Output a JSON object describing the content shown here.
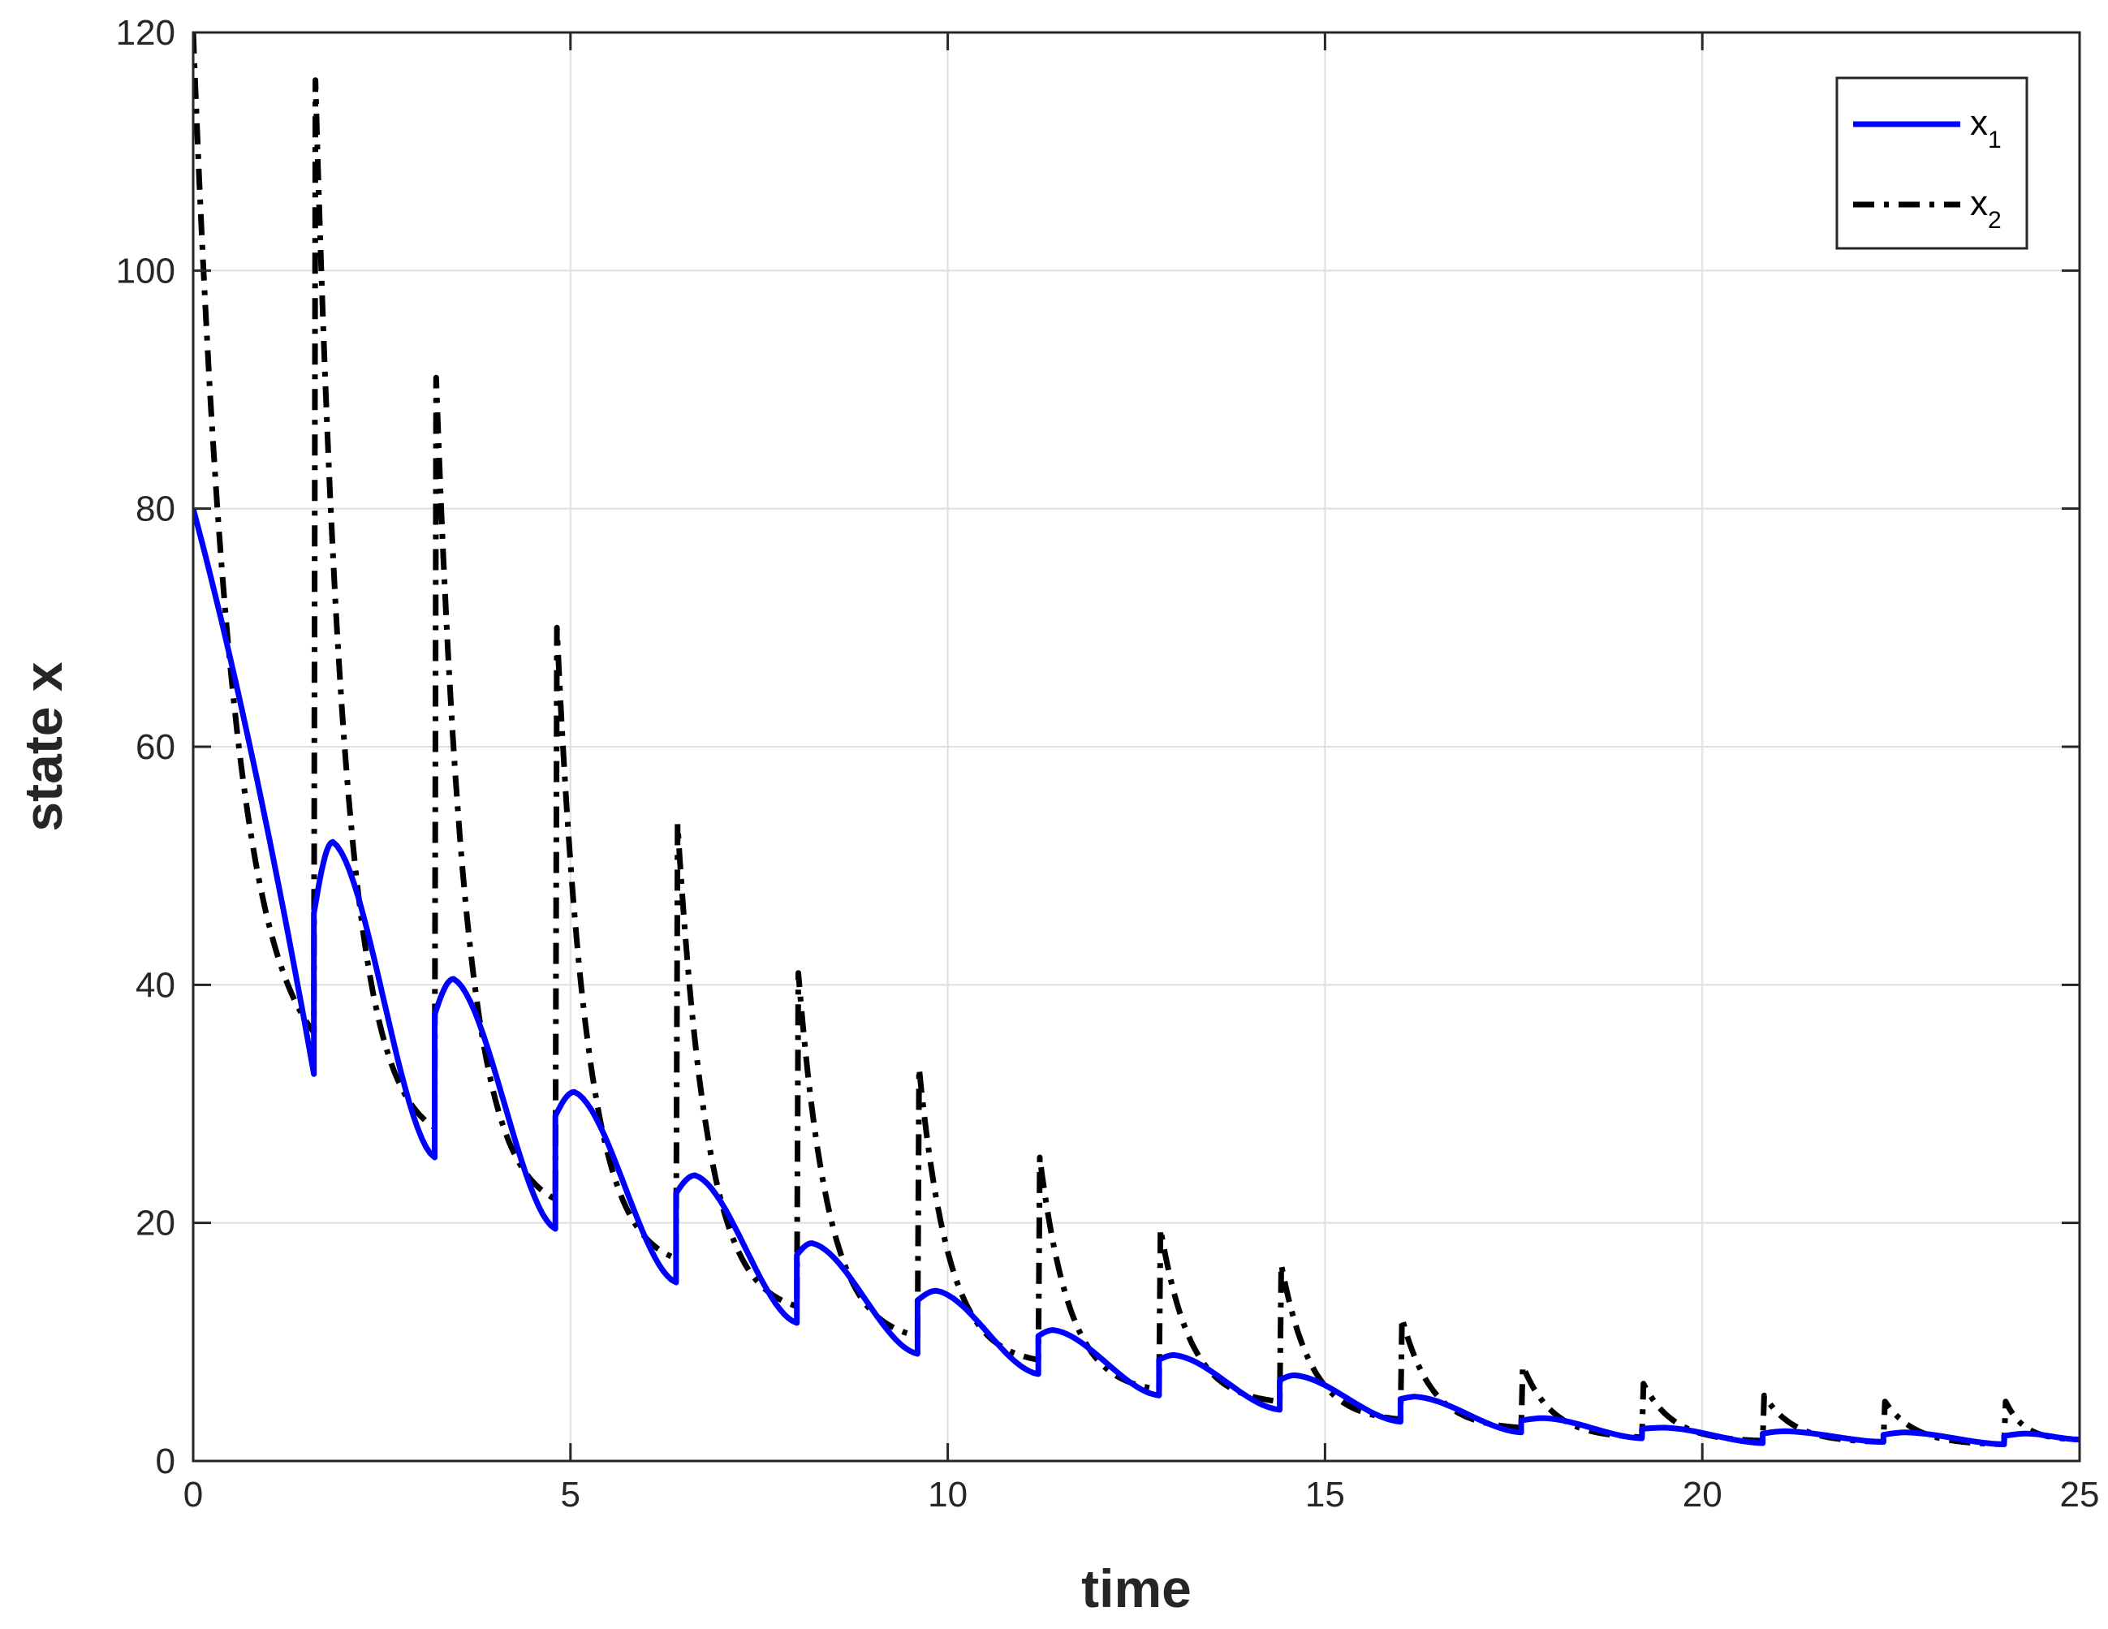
{
  "chart_data": {
    "type": "line",
    "xlabel": "time",
    "ylabel": "state x",
    "xlim": [
      0,
      25
    ],
    "ylim": [
      0,
      120
    ],
    "xticks": [
      0,
      5,
      10,
      15,
      20,
      25
    ],
    "yticks": [
      0,
      20,
      40,
      60,
      80,
      100,
      120
    ],
    "grid": true,
    "legend": "top-right",
    "impulse_times": [
      1.6,
      3.2,
      4.8,
      6.4,
      8.0,
      9.6,
      11.2,
      12.8,
      14.4,
      16.0,
      17.6,
      19.2,
      20.8,
      22.4,
      24.0
    ],
    "series": [
      {
        "name": "x",
        "subscript": "1",
        "color": "#0000ff",
        "style": "solid",
        "start": [
          0,
          80
        ],
        "segments": [
          {
            "after": 46,
            "peak": [
              1.85,
              52
            ],
            "before": 25.5
          },
          {
            "after": 37.5,
            "peak": [
              3.45,
              40.5
            ],
            "before": 19.5
          },
          {
            "after": 29,
            "peak": [
              5.05,
              31
            ],
            "before": 15
          },
          {
            "after": 22.5,
            "peak": [
              6.65,
              24
            ],
            "before": 11.6
          },
          {
            "after": 17.3,
            "peak": [
              8.2,
              18.3
            ],
            "before": 9
          },
          {
            "after": 13.5,
            "peak": [
              9.85,
              14.3
            ],
            "before": 7.3
          },
          {
            "after": 10.5,
            "peak": [
              11.4,
              11
            ],
            "before": 5.5
          },
          {
            "after": 8.5,
            "peak": [
              13,
              8.9
            ],
            "before": 4.3
          },
          {
            "after": 6.8,
            "peak": [
              14.6,
              7.2
            ],
            "before": 3.3
          },
          {
            "after": 5.2,
            "peak": [
              16.2,
              5.4
            ],
            "before": 2.4
          },
          {
            "after": 3.4,
            "peak": [
              17.9,
              3.6
            ],
            "before": 1.9
          },
          {
            "after": 2.7,
            "peak": [
              19.5,
              2.8
            ],
            "before": 1.5
          },
          {
            "after": 2.3,
            "peak": [
              21.1,
              2.5
            ],
            "before": 1.6
          },
          {
            "after": 2.2,
            "peak": [
              22.7,
              2.4
            ],
            "before": 1.4
          },
          {
            "after": 2.1,
            "peak": [
              24.3,
              2.3
            ],
            "before": 1.8
          }
        ],
        "end": [
          25,
          1.8
        ]
      },
      {
        "name": "x",
        "subscript": "2",
        "color": "#000000",
        "style": "dashdot",
        "start": [
          0,
          120
        ],
        "segments": [
          {
            "peak": 116,
            "before": 28
          },
          {
            "peak": 91,
            "before": 22
          },
          {
            "peak": 70,
            "before": 17
          },
          {
            "peak": 53.5,
            "before": 13
          },
          {
            "peak": 41,
            "before": 10.5
          },
          {
            "peak": 33,
            "before": 8.5
          },
          {
            "peak": 25.5,
            "before": 6
          },
          {
            "peak": 19.5,
            "before": 5
          },
          {
            "peak": 16.5,
            "before": 3.5
          },
          {
            "peak": 12,
            "before": 2.8
          },
          {
            "peak": 8,
            "before": 2
          },
          {
            "peak": 6.5,
            "before": 1.7
          },
          {
            "peak": 5.5,
            "before": 1.6
          },
          {
            "peak": 5,
            "before": 1.4
          },
          {
            "peak": 5,
            "before": 1.8
          }
        ],
        "end": [
          25,
          1.8
        ]
      }
    ]
  }
}
